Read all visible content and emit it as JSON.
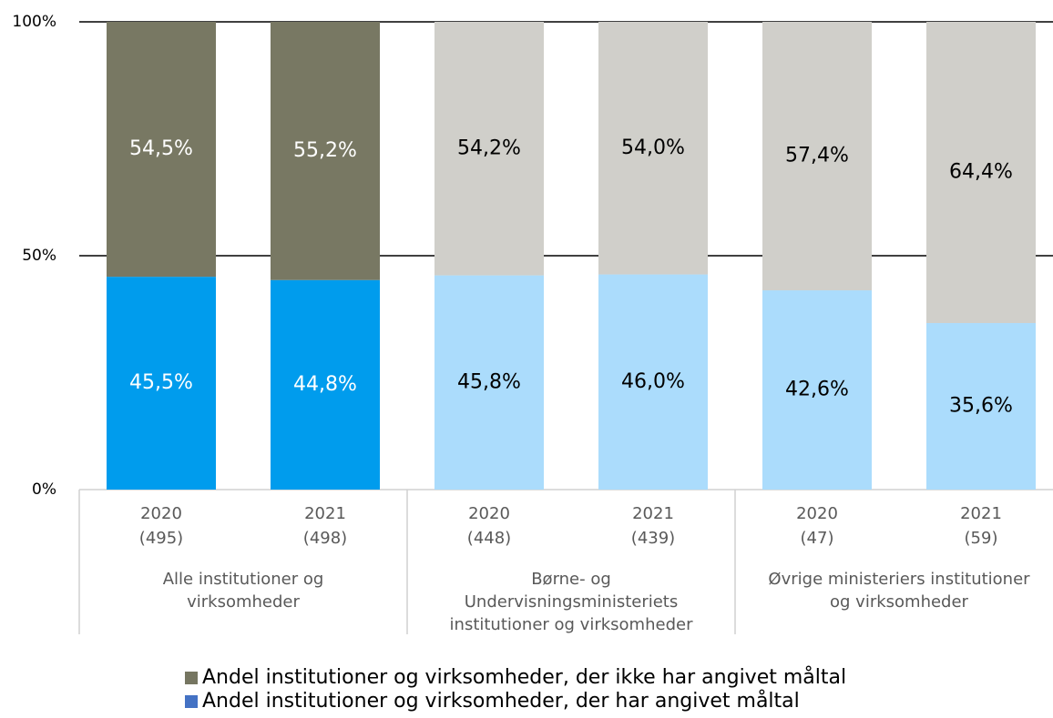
{
  "chart_data": {
    "type": "stacked_bar",
    "categories": [
      "2020",
      "2021",
      "2020",
      "2021",
      "2020",
      "2021"
    ],
    "counts": [
      "(495)",
      "(498)",
      "(448)",
      "(439)",
      "(47)",
      "(59)"
    ],
    "groups": [
      {
        "label_lines": [
          "Alle institutioner og",
          "virksomheder"
        ],
        "size": 2
      },
      {
        "label_lines": [
          "Børne- og",
          "Undervisningsministeriets",
          "institutioner og virksomheder"
        ],
        "size": 2
      },
      {
        "label_lines": [
          "Øvrige ministeriers institutioner",
          "og virksomheder"
        ],
        "size": 2
      }
    ],
    "series": [
      {
        "name": "Andel institutioner og virksomheder, der har angivet måltal",
        "color": "#4472c4",
        "bar_colors": [
          "#009ced",
          "#009ced",
          "#abdcfc",
          "#abdcfc",
          "#abdcfc",
          "#abdcfc"
        ],
        "values": [
          45.5,
          44.8,
          45.8,
          46.0,
          42.6,
          35.6
        ],
        "value_labels": [
          "45,5%",
          "44,8%",
          "45,8%",
          "46,0%",
          "42,6%",
          "35,6%"
        ]
      },
      {
        "name": "Andel institutioner og virksomheder, der ikke har angivet måltal",
        "color": "#767661",
        "bar_colors": [
          "#787863",
          "#787863",
          "#d0cfca",
          "#d0cfca",
          "#d0cfca",
          "#d0cfca"
        ],
        "values": [
          54.5,
          55.2,
          54.2,
          54.0,
          57.4,
          64.4
        ],
        "value_labels": [
          "54,5%",
          "55,2%",
          "54,2%",
          "54,0%",
          "57,4%",
          "64,4%"
        ]
      }
    ],
    "ylim": [
      0,
      100
    ],
    "yticks": [
      {
        "value": 0,
        "label": "0%"
      },
      {
        "value": 50,
        "label": "50%"
      },
      {
        "value": 100,
        "label": "100%"
      }
    ],
    "grid": true
  }
}
